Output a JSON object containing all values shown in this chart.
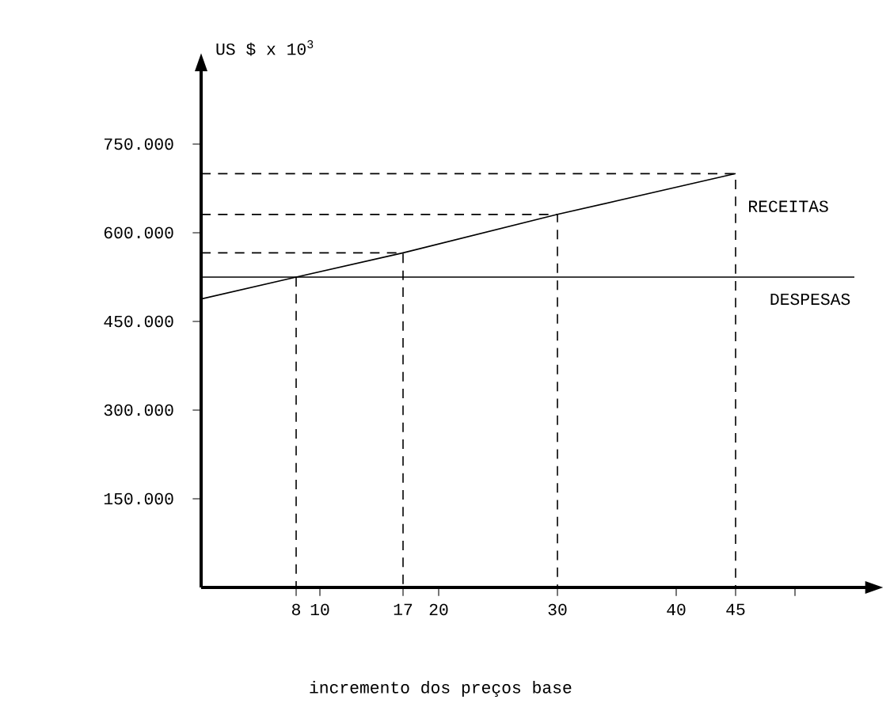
{
  "chart_data": {
    "type": "line",
    "ylabel": "US $ x 10$^{3}$",
    "xlabel": "incremento dos preços base",
    "xlim": [
      0,
      56
    ],
    "ylim": [
      0,
      875000
    ],
    "xticks": [
      8,
      10,
      17,
      20,
      30,
      40,
      45,
      {
        "value": 50,
        "label": null
      }
    ],
    "yticks": [
      {
        "value": 150000,
        "label": "150.000"
      },
      {
        "value": 300000,
        "label": "300.000"
      },
      {
        "value": 450000,
        "label": "450.000"
      },
      {
        "value": 600000,
        "label": "600.000"
      },
      {
        "value": 750000,
        "label": "750.000"
      }
    ],
    "grid": false,
    "marker": "none",
    "series": [
      {
        "name": "RECEITAS",
        "color": "#000000",
        "line_style": "solid",
        "x": [
          0,
          8,
          17,
          30,
          45
        ],
        "values": [
          488000,
          525000,
          566000,
          631000,
          700000
        ]
      },
      {
        "name": "DESPESAS",
        "color": "#000000",
        "line_style": "solid",
        "x": [
          0,
          55
        ],
        "values": [
          525000,
          525000
        ]
      },
      {
        "color": "#000000",
        "line_style": "dashed",
        "x": [
          0,
          45,
          45
        ],
        "values": [
          700000,
          700000,
          0
        ]
      },
      {
        "color": "#000000",
        "line_style": "dashed",
        "x": [
          0,
          30,
          30
        ],
        "values": [
          631000,
          631000,
          0
        ]
      },
      {
        "color": "#000000",
        "line_style": "dashed",
        "x": [
          0,
          17,
          17
        ],
        "values": [
          566000,
          566000,
          0
        ]
      },
      {
        "color": "#000000",
        "line_style": "dashed",
        "x": [
          8,
          8
        ],
        "values": [
          525000,
          0
        ]
      }
    ]
  }
}
